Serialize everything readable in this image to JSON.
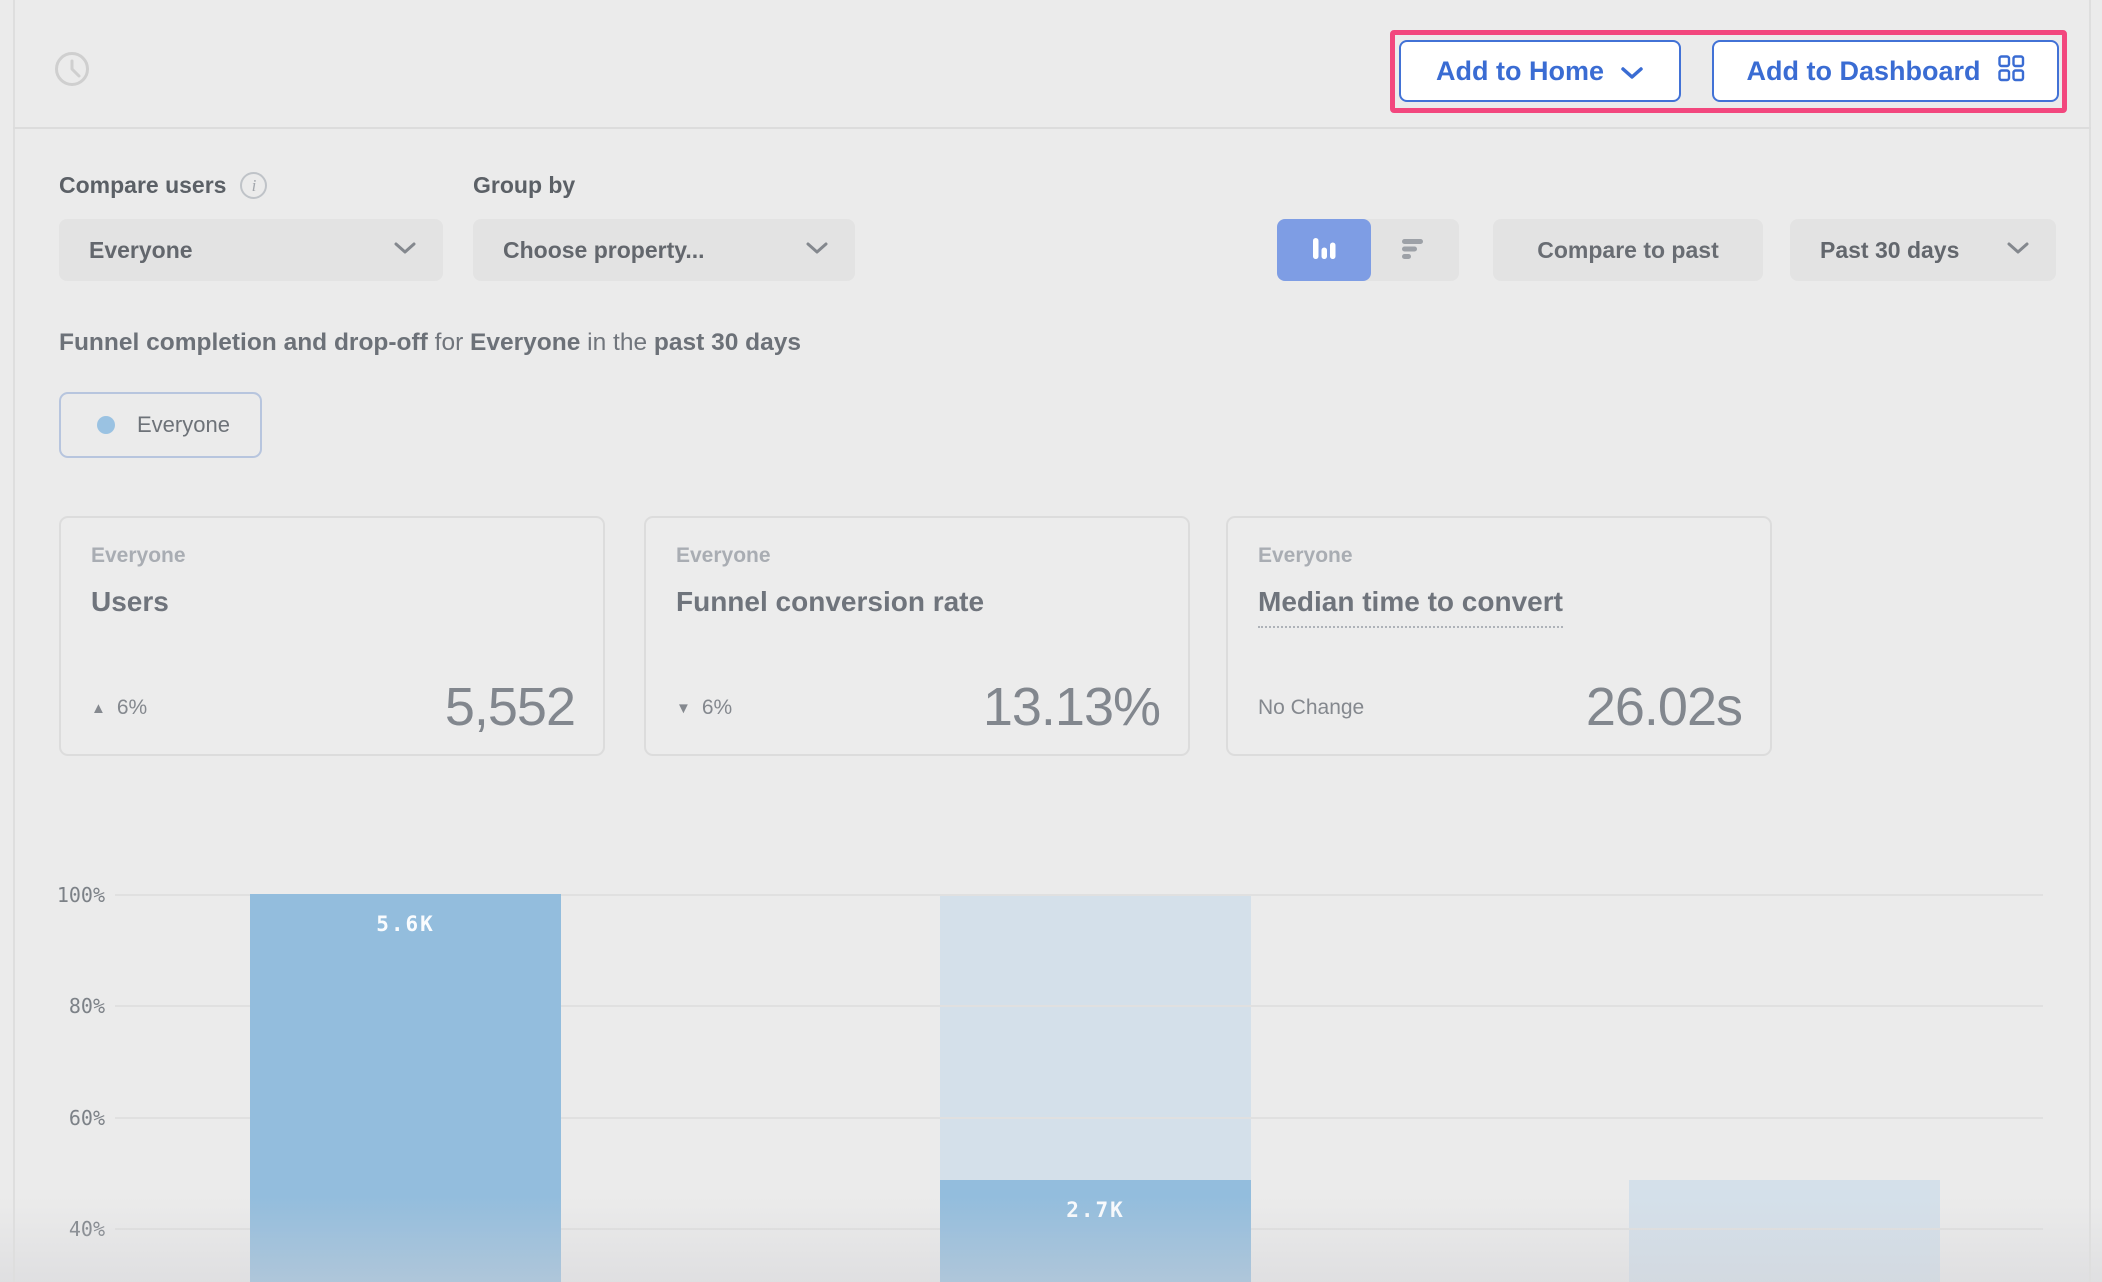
{
  "topbar": {
    "add_to_home_label": "Add to Home",
    "add_to_dashboard_label": "Add to Dashboard"
  },
  "filters": {
    "compare_users_label": "Compare users",
    "compare_users_value": "Everyone",
    "group_by_label": "Group by",
    "group_by_placeholder": "Choose property...",
    "compare_to_past_label": "Compare to past",
    "date_range_value": "Past 30 days"
  },
  "headline": {
    "part1": "Funnel completion and drop-off",
    "part2": " for ",
    "part3": "Everyone",
    "part4": " in the ",
    "part5": "past 30 days"
  },
  "legend": {
    "series_label": "Everyone"
  },
  "metric_cards": [
    {
      "segment": "Everyone",
      "title": "Users",
      "delta_direction": "up",
      "delta": "6%",
      "value": "5,552"
    },
    {
      "segment": "Everyone",
      "title": "Funnel conversion rate",
      "delta_direction": "down",
      "delta": "6%",
      "value": "13.13%"
    },
    {
      "segment": "Everyone",
      "title": "Median time to convert",
      "delta_direction": "none",
      "delta": "No Change",
      "value": "26.02s"
    }
  ],
  "icons": {
    "delta_up": "▲",
    "delta_down": "▼",
    "info": "i"
  },
  "chart_data": {
    "type": "bar",
    "subtype": "funnel-steps-with-dropoff",
    "title": "Funnel completion and drop-off for Everyone in the past 30 days",
    "yticks": [
      "100%",
      "80%",
      "60%",
      "40%"
    ],
    "ylim_visible": [
      30,
      100
    ],
    "grid": "horizontal",
    "legend_position": "top-left",
    "series": [
      {
        "name": "Everyone",
        "color": "#93bddd",
        "faded_color": "#d4e0ea"
      }
    ],
    "bars": [
      {
        "step": 1,
        "value_label": "5.6K",
        "converted_pct": 100,
        "total_pct": 100
      },
      {
        "step": 2,
        "value_label": "2.7K",
        "converted_pct": 48.6,
        "total_pct": 100
      },
      {
        "step": 3,
        "value_label": "",
        "converted_pct": null,
        "total_pct": 48.6
      }
    ]
  },
  "colors": {
    "background": "#ebebeb",
    "accent_blue_text": "#3a6cd3",
    "toggle_selected_blue": "#7e9de4",
    "bar_solid_blue": "#93bddd",
    "bar_faded_blue": "#d4e0ea",
    "legend_dot_blue": "#9ac2e2",
    "highlight_pink": "#f2477e",
    "control_gray": "#e3e3e3"
  }
}
